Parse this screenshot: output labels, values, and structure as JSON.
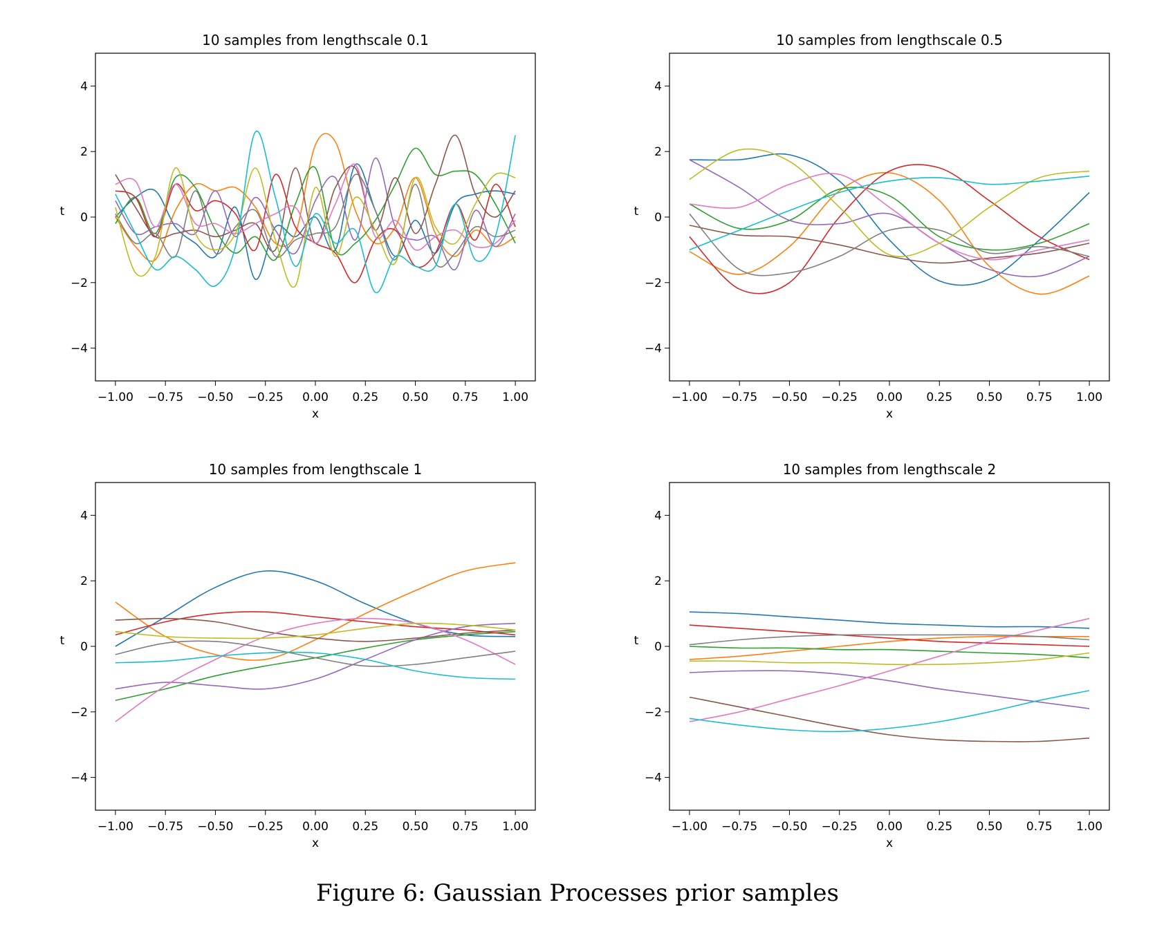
{
  "caption": "Figure 6: Gaussian Processes prior samples",
  "colors": [
    "#1f77b4",
    "#ff7f0e",
    "#2ca02c",
    "#d62728",
    "#9467bd",
    "#8c564b",
    "#e377c2",
    "#7f7f7f",
    "#bcbd22",
    "#17becf"
  ],
  "chart_data": [
    {
      "type": "line",
      "title": "10 samples from lengthscale 0.1",
      "xlabel": "x",
      "ylabel": "t",
      "xlim": [
        -1.1,
        1.1
      ],
      "ylim": [
        -5,
        5
      ],
      "xticks": [
        "−1.00",
        "−0.75",
        "−0.50",
        "−0.25",
        "0.00",
        "0.25",
        "0.50",
        "0.75",
        "1.00"
      ],
      "yticks": [
        "−4",
        "−2",
        "0",
        "2",
        "4"
      ],
      "x": [
        -1.0,
        -0.9,
        -0.8,
        -0.7,
        -0.6,
        -0.5,
        -0.4,
        -0.3,
        -0.2,
        -0.1,
        0.0,
        0.1,
        0.2,
        0.3,
        0.4,
        0.5,
        0.6,
        0.7,
        0.8,
        0.9,
        1.0
      ],
      "series": [
        {
          "values": [
            0.0,
            0.6,
            0.8,
            -0.3,
            -0.8,
            -1.2,
            0.3,
            -1.9,
            -0.3,
            -0.6,
            0.0,
            -1.0,
            1.6,
            0.2,
            -1.2,
            -0.1,
            -1.1,
            0.4,
            0.7,
            0.8,
            0.7
          ]
        },
        {
          "values": [
            0.0,
            -0.9,
            -1.3,
            0.2,
            1.0,
            0.8,
            0.9,
            0.3,
            -0.8,
            -0.5,
            2.2,
            2.3,
            0.2,
            -0.8,
            -0.3,
            1.2,
            -0.5,
            -1.2,
            -0.4,
            -0.9,
            -0.6
          ]
        },
        {
          "values": [
            -0.2,
            0.6,
            -0.5,
            1.2,
            0.9,
            -0.4,
            -1.1,
            -0.6,
            -1.3,
            0.4,
            1.5,
            -1.0,
            -0.8,
            -0.1,
            1.0,
            2.1,
            1.3,
            1.4,
            1.3,
            0.4,
            -0.8
          ]
        },
        {
          "values": [
            0.8,
            0.6,
            -0.6,
            1.0,
            0.2,
            0.5,
            0.1,
            -1.0,
            1.3,
            -0.3,
            -0.8,
            -1.1,
            -2.0,
            -0.7,
            -0.4,
            -1.5,
            -1.1,
            0.4,
            -0.7,
            1.0,
            -0.3
          ]
        },
        {
          "values": [
            0.5,
            -0.5,
            -0.3,
            -0.2,
            -0.5,
            0.8,
            -0.6,
            0.6,
            -0.4,
            -1.1,
            0.5,
            1.2,
            -0.7,
            1.8,
            -0.3,
            -0.7,
            -0.6,
            -1.6,
            0.2,
            -0.9,
            0.1
          ]
        },
        {
          "values": [
            1.3,
            0.3,
            -0.6,
            -0.5,
            -0.4,
            -0.6,
            -0.4,
            -0.2,
            -1.0,
            1.5,
            -0.8,
            0.9,
            1.5,
            -0.4,
            1.2,
            -0.5,
            1.0,
            2.5,
            0.7,
            0.0,
            0.8
          ]
        },
        {
          "values": [
            1.0,
            1.1,
            -0.3,
            1.0,
            -0.2,
            -0.2,
            -0.5,
            -0.2,
            0.1,
            0.3,
            -0.8,
            0.4,
            1.6,
            -0.6,
            -0.1,
            -1.0,
            -0.6,
            -0.4,
            -0.9,
            -0.8,
            -0.1
          ]
        },
        {
          "values": [
            0.1,
            -0.8,
            -0.5,
            -1.2,
            0.8,
            -1.1,
            -0.3,
            0.2,
            -1.2,
            -0.7,
            -0.5,
            -0.3,
            1.3,
            0.2,
            -1.3,
            1.0,
            -1.4,
            -1.1,
            -0.3,
            -0.6,
            -0.4
          ]
        },
        {
          "values": [
            0.3,
            -1.7,
            -1.2,
            1.5,
            -0.5,
            -1.0,
            -0.5,
            1.5,
            -0.7,
            -2.1,
            0.9,
            -1.2,
            0.6,
            -0.4,
            -1.4,
            1.2,
            -0.3,
            -0.8,
            0.4,
            1.3,
            1.2
          ]
        },
        {
          "values": [
            0.7,
            -0.5,
            -1.6,
            -1.2,
            -1.6,
            -2.1,
            -0.9,
            2.6,
            0.6,
            -1.5,
            0.1,
            -0.8,
            -0.4,
            -2.3,
            -1.2,
            -1.5,
            -1.5,
            0.4,
            -1.3,
            -0.6,
            2.5
          ]
        }
      ]
    },
    {
      "type": "line",
      "title": "10 samples from lengthscale 0.5",
      "xlabel": "x",
      "ylabel": "t",
      "xlim": [
        -1.1,
        1.1
      ],
      "ylim": [
        -5,
        5
      ],
      "xticks": [
        "−1.00",
        "−0.75",
        "−0.50",
        "−0.25",
        "0.00",
        "0.25",
        "0.50",
        "0.75",
        "1.00"
      ],
      "yticks": [
        "−4",
        "−2",
        "0",
        "2",
        "4"
      ],
      "x": [
        -1.0,
        -0.75,
        -0.5,
        -0.25,
        0.0,
        0.25,
        0.5,
        0.75,
        1.0
      ],
      "series": [
        {
          "values": [
            1.75,
            1.75,
            1.9,
            1.1,
            -0.7,
            -1.95,
            -1.9,
            -0.7,
            0.75
          ]
        },
        {
          "values": [
            -1.05,
            -1.75,
            -0.9,
            0.8,
            1.35,
            0.5,
            -1.5,
            -2.35,
            -1.8
          ]
        },
        {
          "values": [
            0.4,
            -0.35,
            -0.1,
            0.85,
            0.65,
            -0.6,
            -1.0,
            -0.8,
            -0.2
          ]
        },
        {
          "values": [
            -0.6,
            -2.2,
            -2.0,
            0.0,
            1.4,
            1.5,
            0.5,
            -0.6,
            -1.3
          ]
        },
        {
          "values": [
            1.75,
            0.9,
            -0.1,
            -0.2,
            0.1,
            -0.8,
            -1.6,
            -1.8,
            -1.2
          ]
        },
        {
          "values": [
            -0.25,
            -0.55,
            -0.6,
            -0.85,
            -1.2,
            -1.4,
            -1.25,
            -1.1,
            -0.8
          ]
        },
        {
          "values": [
            0.4,
            0.3,
            1.0,
            1.3,
            0.3,
            -0.8,
            -1.3,
            -1.0,
            -0.7
          ]
        },
        {
          "values": [
            0.1,
            -1.6,
            -1.7,
            -1.2,
            -0.4,
            -0.4,
            -1.1,
            -0.9,
            -1.2
          ]
        },
        {
          "values": [
            1.15,
            2.05,
            1.7,
            0.3,
            -1.15,
            -0.8,
            0.3,
            1.2,
            1.4
          ]
        },
        {
          "values": [
            -1.0,
            -0.4,
            0.2,
            0.75,
            1.1,
            1.2,
            1.0,
            1.1,
            1.25
          ]
        }
      ]
    },
    {
      "type": "line",
      "title": "10 samples from lengthscale 1",
      "xlabel": "x",
      "ylabel": "t",
      "xlim": [
        -1.1,
        1.1
      ],
      "ylim": [
        -5,
        5
      ],
      "xticks": [
        "−1.00",
        "−0.75",
        "−0.50",
        "−0.25",
        "0.00",
        "0.25",
        "0.50",
        "0.75",
        "1.00"
      ],
      "yticks": [
        "−4",
        "−2",
        "0",
        "2",
        "4"
      ],
      "x": [
        -1.0,
        -0.75,
        -0.5,
        -0.25,
        0.0,
        0.25,
        0.5,
        0.75,
        1.0
      ],
      "series": [
        {
          "values": [
            0.0,
            0.9,
            1.8,
            2.3,
            2.0,
            1.3,
            0.7,
            0.35,
            0.3
          ]
        },
        {
          "values": [
            1.35,
            0.3,
            -0.25,
            -0.4,
            0.2,
            1.0,
            1.7,
            2.3,
            2.55
          ]
        },
        {
          "values": [
            -1.65,
            -1.3,
            -0.9,
            -0.6,
            -0.35,
            -0.05,
            0.2,
            0.35,
            0.45
          ]
        },
        {
          "values": [
            0.35,
            0.75,
            1.0,
            1.05,
            0.9,
            0.75,
            0.6,
            0.5,
            0.35
          ]
        },
        {
          "values": [
            -1.3,
            -1.1,
            -1.2,
            -1.3,
            -1.0,
            -0.4,
            0.2,
            0.6,
            0.7
          ]
        },
        {
          "values": [
            0.8,
            0.85,
            0.75,
            0.45,
            0.25,
            0.15,
            0.25,
            0.4,
            0.5
          ]
        },
        {
          "values": [
            -2.3,
            -1.2,
            -0.4,
            0.3,
            0.7,
            0.85,
            0.7,
            0.2,
            -0.55
          ]
        },
        {
          "values": [
            -0.25,
            0.1,
            0.15,
            -0.05,
            -0.35,
            -0.6,
            -0.55,
            -0.35,
            -0.15
          ]
        },
        {
          "values": [
            0.45,
            0.3,
            0.25,
            0.25,
            0.35,
            0.55,
            0.7,
            0.65,
            0.5
          ]
        },
        {
          "values": [
            -0.5,
            -0.45,
            -0.3,
            -0.2,
            -0.2,
            -0.4,
            -0.75,
            -0.95,
            -1.0
          ]
        }
      ]
    },
    {
      "type": "line",
      "title": "10 samples from lengthscale 2",
      "xlabel": "x",
      "ylabel": "t",
      "xlim": [
        -1.1,
        1.1
      ],
      "ylim": [
        -5,
        5
      ],
      "xticks": [
        "−1.00",
        "−0.75",
        "−0.50",
        "−0.25",
        "0.00",
        "0.25",
        "0.50",
        "0.75",
        "1.00"
      ],
      "yticks": [
        "−4",
        "−2",
        "0",
        "2",
        "4"
      ],
      "x": [
        -1.0,
        -0.75,
        -0.5,
        -0.25,
        0.0,
        0.25,
        0.5,
        0.75,
        1.0
      ],
      "series": [
        {
          "values": [
            1.05,
            1.0,
            0.9,
            0.8,
            0.7,
            0.65,
            0.6,
            0.6,
            0.55
          ]
        },
        {
          "values": [
            -0.4,
            -0.3,
            -0.15,
            0.0,
            0.15,
            0.25,
            0.3,
            0.3,
            0.3
          ]
        },
        {
          "values": [
            0.0,
            -0.05,
            -0.05,
            -0.1,
            -0.1,
            -0.15,
            -0.2,
            -0.25,
            -0.35
          ]
        },
        {
          "values": [
            0.65,
            0.55,
            0.45,
            0.35,
            0.25,
            0.15,
            0.1,
            0.05,
            0.0
          ]
        },
        {
          "values": [
            -0.8,
            -0.75,
            -0.75,
            -0.85,
            -1.05,
            -1.3,
            -1.5,
            -1.7,
            -1.9
          ]
        },
        {
          "values": [
            -1.55,
            -1.85,
            -2.15,
            -2.45,
            -2.7,
            -2.85,
            -2.9,
            -2.9,
            -2.8
          ]
        },
        {
          "values": [
            -2.3,
            -2.0,
            -1.6,
            -1.2,
            -0.75,
            -0.3,
            0.15,
            0.5,
            0.85
          ]
        },
        {
          "values": [
            0.05,
            0.2,
            0.3,
            0.35,
            0.35,
            0.35,
            0.35,
            0.3,
            0.2
          ]
        },
        {
          "values": [
            -0.45,
            -0.45,
            -0.5,
            -0.5,
            -0.55,
            -0.55,
            -0.5,
            -0.4,
            -0.2
          ]
        },
        {
          "values": [
            -2.2,
            -2.4,
            -2.55,
            -2.6,
            -2.5,
            -2.3,
            -2.0,
            -1.65,
            -1.35
          ]
        }
      ]
    }
  ]
}
